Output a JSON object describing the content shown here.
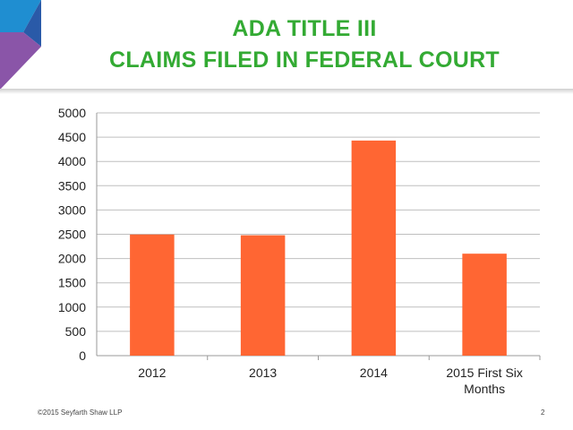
{
  "header": {
    "title_line1": "ADA TITLE III",
    "title_line2": "CLAIMS FILED IN FEDERAL COURT"
  },
  "footer": {
    "copyright": "©2015 Seyfarth Shaw LLP",
    "page_number": "2"
  },
  "colors": {
    "title": "#33aa33",
    "bar": "#ff6633",
    "logo_blue": "#1f8ed1",
    "logo_darkblue": "#2a5aa8",
    "logo_purple": "#8a55a8"
  },
  "chart_data": {
    "type": "bar",
    "title": "",
    "xlabel": "",
    "ylabel": "",
    "categories": [
      "2012",
      "2013",
      "2014",
      "2015 First Six Months"
    ],
    "category_lines": [
      [
        "2012"
      ],
      [
        "2013"
      ],
      [
        "2014"
      ],
      [
        "2015 First Six",
        "Months"
      ]
    ],
    "values": [
      2495,
      2480,
      4430,
      2100
    ],
    "ylim": [
      0,
      5000
    ],
    "yticks": [
      "0",
      "500",
      "1000",
      "1500",
      "2000",
      "2500",
      "3000",
      "3500",
      "4000",
      "4500",
      "5000"
    ],
    "grid": true,
    "legend": "none"
  }
}
